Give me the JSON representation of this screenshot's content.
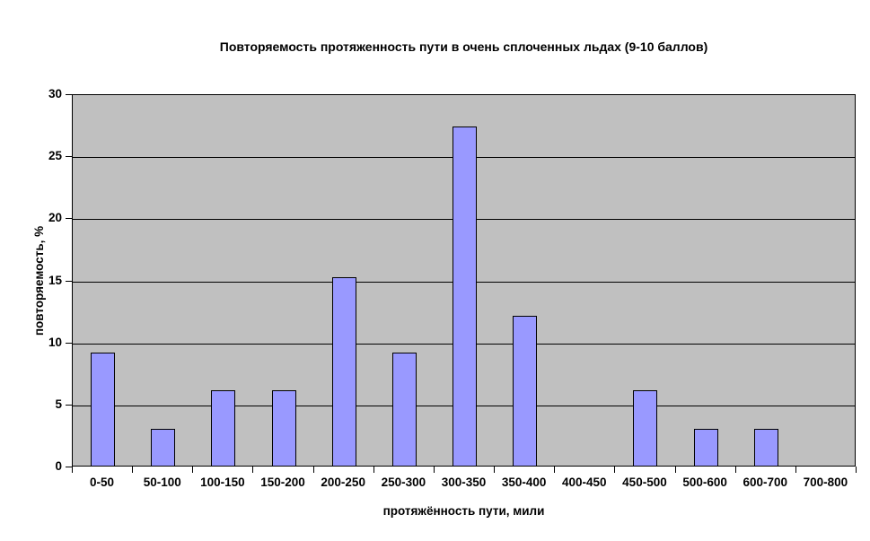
{
  "chart_data": {
    "type": "bar",
    "title": "Повторяемость протяженность пути в очень сплоченных льдах (9-10 баллов)",
    "xlabel": "протяжённость пути, мили",
    "ylabel": "повторяемость, %",
    "categories": [
      "0-50",
      "50-100",
      "100-150",
      "150-200",
      "200-250",
      "250-300",
      "300-350",
      "350-400",
      "400-450",
      "450-500",
      "500-600",
      "600-700",
      "700-800"
    ],
    "values": [
      9.1,
      3.0,
      6.1,
      6.1,
      15.2,
      9.1,
      27.3,
      12.1,
      0,
      6.1,
      3.0,
      3.0,
      0
    ],
    "ylim": [
      0,
      30
    ],
    "yticks": [
      0,
      5,
      10,
      15,
      20,
      25,
      30
    ],
    "grid": "horizontal",
    "legend": "none",
    "colors": {
      "bar_fill": "#9999FF",
      "bar_border": "#000000",
      "plot_background": "#C0C0C0",
      "gridline": "#000000",
      "page_background": "#FFFFFF",
      "text": "#000000"
    }
  }
}
